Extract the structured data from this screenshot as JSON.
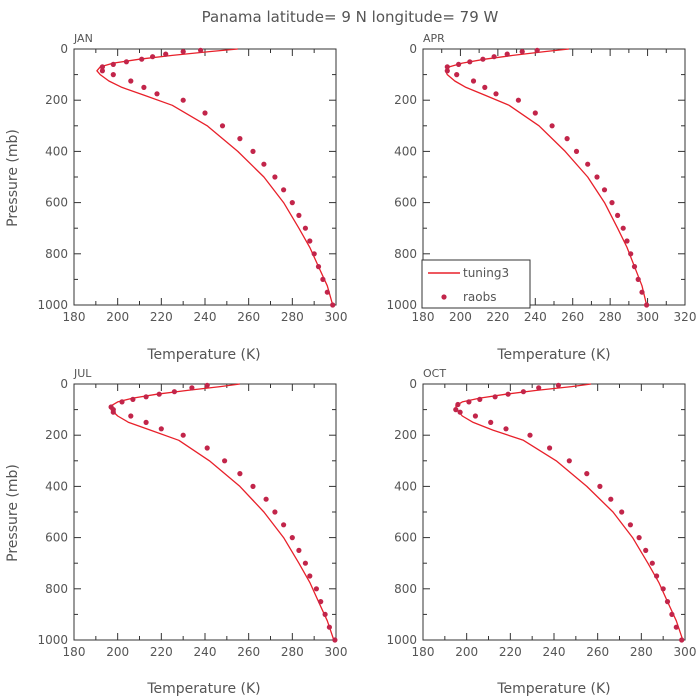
{
  "figure": {
    "title": "Panama  latitude= 9 N longitude= 79 W"
  },
  "colors": {
    "model_line": "#e8202a",
    "obs_marker": "#c2254a",
    "axis": "#333333",
    "text": "#555555"
  },
  "legend": {
    "panel": "APR",
    "items": [
      {
        "label": "tuning3",
        "kind": "line"
      },
      {
        "label": "raobs",
        "kind": "marker"
      }
    ]
  },
  "chart_data": [
    {
      "type": "line",
      "title": "JAN",
      "xlabel": "Temperature (K)",
      "ylabel": "Pressure (mb)",
      "xlim": [
        180,
        300
      ],
      "ylim": [
        1000,
        0
      ],
      "xticks": [
        180,
        200,
        220,
        240,
        260,
        280,
        300
      ],
      "yticks": [
        0,
        200,
        400,
        600,
        800,
        1000
      ],
      "grid": false,
      "series": [
        {
          "name": "tuning3",
          "style": "line",
          "x": [
            298.5,
            296,
            292,
            288,
            283,
            276,
            267,
            255,
            241,
            225,
            212,
            202,
            196,
            192,
            190.5,
            192,
            198,
            210,
            225,
            242,
            255
          ],
          "y": [
            1000,
            925,
            850,
            775,
            700,
            600,
            500,
            400,
            300,
            220,
            180,
            150,
            125,
            100,
            85,
            70,
            55,
            40,
            25,
            10,
            0
          ]
        },
        {
          "name": "raobs",
          "style": "marker",
          "x": [
            298.5,
            296,
            294,
            292,
            290,
            288,
            286,
            283,
            280,
            276,
            272,
            267,
            262,
            256,
            248,
            240,
            230,
            218,
            212,
            206,
            198,
            193,
            193,
            198,
            204,
            211,
            216,
            222,
            230,
            238
          ],
          "y": [
            1000,
            950,
            900,
            850,
            800,
            750,
            700,
            650,
            600,
            550,
            500,
            450,
            400,
            350,
            300,
            250,
            200,
            175,
            150,
            125,
            100,
            85,
            70,
            60,
            50,
            40,
            30,
            20,
            10,
            5
          ]
        }
      ]
    },
    {
      "type": "line",
      "title": "APR",
      "xlabel": "Temperature (K)",
      "ylabel": "",
      "xlim": [
        180,
        320
      ],
      "ylim": [
        1000,
        0
      ],
      "xticks": [
        180,
        200,
        220,
        240,
        260,
        280,
        300,
        320
      ],
      "yticks": [
        0,
        200,
        400,
        600,
        800,
        1000
      ],
      "grid": false,
      "legend": "bottom-left",
      "series": [
        {
          "name": "tuning3",
          "style": "line",
          "x": [
            299.5,
            297,
            293,
            289,
            284,
            277,
            268,
            256,
            242,
            226,
            213,
            203,
            197,
            193,
            192,
            194,
            201,
            213,
            228,
            245,
            258
          ],
          "y": [
            1000,
            925,
            850,
            775,
            700,
            600,
            500,
            400,
            300,
            220,
            180,
            150,
            125,
            100,
            85,
            70,
            55,
            40,
            25,
            10,
            0
          ]
        },
        {
          "name": "raobs",
          "style": "marker",
          "x": [
            299.5,
            297,
            295,
            293,
            291,
            289,
            287,
            284,
            281,
            277,
            273,
            268,
            262,
            257,
            249,
            240,
            231,
            219,
            213,
            207,
            198,
            193,
            193,
            199,
            205,
            212,
            218,
            225,
            233,
            241
          ],
          "y": [
            1000,
            950,
            900,
            850,
            800,
            750,
            700,
            650,
            600,
            550,
            500,
            450,
            400,
            350,
            300,
            250,
            200,
            175,
            150,
            125,
            100,
            85,
            70,
            60,
            50,
            40,
            30,
            20,
            10,
            5
          ]
        }
      ]
    },
    {
      "type": "line",
      "title": "JUL",
      "xlabel": "Temperature (K)",
      "ylabel": "Pressure (mb)",
      "xlim": [
        180,
        300
      ],
      "ylim": [
        1000,
        0
      ],
      "xticks": [
        180,
        200,
        220,
        240,
        260,
        280,
        300
      ],
      "yticks": [
        0,
        200,
        400,
        600,
        800,
        1000
      ],
      "grid": false,
      "series": [
        {
          "name": "tuning3",
          "style": "line",
          "x": [
            299,
            296,
            292,
            288,
            283,
            276,
            267,
            256,
            242,
            228,
            215,
            205,
            200,
            197,
            197,
            200,
            207,
            218,
            232,
            247,
            256
          ],
          "y": [
            1000,
            925,
            850,
            775,
            700,
            600,
            500,
            400,
            300,
            220,
            180,
            150,
            125,
            100,
            85,
            70,
            55,
            40,
            25,
            10,
            0
          ]
        },
        {
          "name": "raobs",
          "style": "marker",
          "x": [
            299.5,
            297,
            295,
            293,
            291,
            288,
            286,
            283,
            280,
            276,
            272,
            268,
            262,
            256,
            249,
            241,
            230,
            220,
            213,
            206,
            198,
            198,
            197,
            202,
            207,
            213,
            219,
            226,
            234,
            241
          ],
          "y": [
            1000,
            950,
            900,
            850,
            800,
            750,
            700,
            650,
            600,
            550,
            500,
            450,
            400,
            350,
            300,
            250,
            200,
            175,
            150,
            125,
            110,
            100,
            90,
            70,
            60,
            50,
            40,
            30,
            15,
            5
          ]
        }
      ]
    },
    {
      "type": "line",
      "title": "OCT",
      "xlabel": "Temperature (K)",
      "ylabel": "",
      "xlim": [
        180,
        300
      ],
      "ylim": [
        1000,
        0
      ],
      "xticks": [
        180,
        200,
        220,
        240,
        260,
        280,
        300
      ],
      "yticks": [
        0,
        200,
        400,
        600,
        800,
        1000
      ],
      "grid": false,
      "series": [
        {
          "name": "tuning3",
          "style": "line",
          "x": [
            299,
            296,
            292,
            288,
            283,
            276,
            267,
            255,
            241,
            226,
            212,
            203,
            198,
            195.5,
            195,
            198,
            206,
            218,
            232,
            248,
            257
          ],
          "y": [
            1000,
            925,
            850,
            775,
            700,
            600,
            500,
            400,
            300,
            220,
            180,
            150,
            125,
            100,
            85,
            70,
            55,
            40,
            25,
            10,
            0
          ]
        },
        {
          "name": "raobs",
          "style": "marker",
          "x": [
            298.5,
            296,
            294,
            292,
            290,
            287,
            285,
            282,
            279,
            275,
            271,
            266,
            261,
            255,
            247,
            238,
            229,
            218,
            211,
            204,
            197,
            195,
            196,
            201,
            206,
            213,
            219,
            226,
            233,
            242
          ],
          "y": [
            1000,
            950,
            900,
            850,
            800,
            750,
            700,
            650,
            600,
            550,
            500,
            450,
            400,
            350,
            300,
            250,
            200,
            175,
            150,
            125,
            110,
            100,
            80,
            70,
            60,
            50,
            40,
            30,
            15,
            5
          ]
        }
      ]
    }
  ]
}
